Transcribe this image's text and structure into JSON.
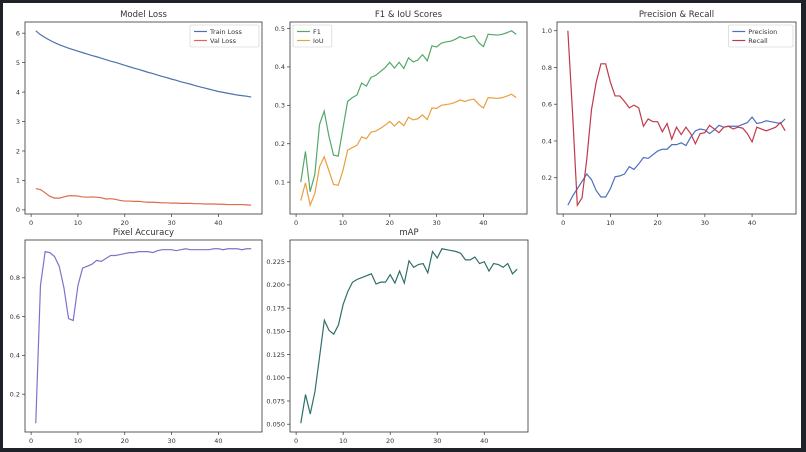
{
  "chart_data": [
    {
      "type": "line",
      "title": "Model Loss",
      "x": [
        1,
        2,
        3,
        4,
        5,
        6,
        7,
        8,
        9,
        10,
        11,
        12,
        13,
        14,
        15,
        16,
        17,
        18,
        19,
        20,
        21,
        22,
        23,
        24,
        25,
        26,
        27,
        28,
        29,
        30,
        31,
        32,
        33,
        34,
        35,
        36,
        37,
        38,
        39,
        40,
        41,
        42,
        43,
        44,
        45,
        46,
        47
      ],
      "xlim": [
        -1.3,
        49.3
      ],
      "xticks": [
        0,
        10,
        20,
        30,
        40
      ],
      "ylim": [
        -0.14,
        6.38
      ],
      "yticks": [
        0,
        1,
        2,
        3,
        4,
        5,
        6
      ],
      "legend": "top-right",
      "series": [
        {
          "name": "Train Loss",
          "color": "#4c72b0",
          "values": [
            6.08,
            5.95,
            5.85,
            5.76,
            5.68,
            5.61,
            5.55,
            5.49,
            5.44,
            5.39,
            5.34,
            5.29,
            5.24,
            5.2,
            5.15,
            5.1,
            5.05,
            5.01,
            4.96,
            4.91,
            4.86,
            4.81,
            4.77,
            4.72,
            4.67,
            4.63,
            4.58,
            4.53,
            4.49,
            4.44,
            4.4,
            4.35,
            4.31,
            4.27,
            4.22,
            4.18,
            4.14,
            4.1,
            4.06,
            4.02,
            3.99,
            3.96,
            3.93,
            3.9,
            3.88,
            3.86,
            3.83
          ]
        },
        {
          "name": "Val Loss",
          "color": "#dd6b4a",
          "values": [
            0.72,
            0.69,
            0.58,
            0.46,
            0.4,
            0.4,
            0.44,
            0.48,
            0.48,
            0.47,
            0.44,
            0.43,
            0.44,
            0.43,
            0.41,
            0.37,
            0.38,
            0.36,
            0.32,
            0.3,
            0.3,
            0.29,
            0.29,
            0.27,
            0.26,
            0.26,
            0.25,
            0.24,
            0.24,
            0.23,
            0.23,
            0.22,
            0.22,
            0.22,
            0.21,
            0.21,
            0.2,
            0.2,
            0.2,
            0.19,
            0.19,
            0.18,
            0.18,
            0.18,
            0.18,
            0.17,
            0.16
          ]
        }
      ]
    },
    {
      "type": "line",
      "title": "F1 & IoU Scores",
      "x": [
        1,
        2,
        3,
        4,
        5,
        6,
        7,
        8,
        9,
        10,
        11,
        12,
        13,
        14,
        15,
        16,
        17,
        18,
        19,
        20,
        21,
        22,
        23,
        24,
        25,
        26,
        27,
        28,
        29,
        30,
        31,
        32,
        33,
        34,
        35,
        36,
        37,
        38,
        39,
        40,
        41,
        42,
        43,
        44,
        45,
        46,
        47
      ],
      "xlim": [
        -1.3,
        49.3
      ],
      "xticks": [
        0,
        10,
        20,
        30,
        40
      ],
      "ylim": [
        0.017,
        0.517
      ],
      "yticks": [
        0.1,
        0.2,
        0.3,
        0.4,
        0.5
      ],
      "legend": "top-left",
      "series": [
        {
          "name": "F1",
          "color": "#55a868",
          "values": [
            0.1,
            0.18,
            0.075,
            0.12,
            0.25,
            0.285,
            0.22,
            0.17,
            0.168,
            0.24,
            0.31,
            0.32,
            0.327,
            0.358,
            0.35,
            0.373,
            0.378,
            0.388,
            0.398,
            0.412,
            0.397,
            0.412,
            0.396,
            0.424,
            0.413,
            0.418,
            0.432,
            0.416,
            0.455,
            0.452,
            0.462,
            0.465,
            0.467,
            0.472,
            0.479,
            0.474,
            0.478,
            0.481,
            0.463,
            0.453,
            0.485,
            0.484,
            0.483,
            0.485,
            0.489,
            0.494,
            0.485
          ]
        },
        {
          "name": "IoU",
          "color": "#e8a040",
          "values": [
            0.052,
            0.098,
            0.04,
            0.07,
            0.14,
            0.166,
            0.13,
            0.094,
            0.092,
            0.13,
            0.183,
            0.19,
            0.196,
            0.218,
            0.213,
            0.23,
            0.233,
            0.24,
            0.248,
            0.258,
            0.246,
            0.258,
            0.247,
            0.269,
            0.262,
            0.265,
            0.275,
            0.263,
            0.293,
            0.292,
            0.3,
            0.302,
            0.304,
            0.308,
            0.314,
            0.31,
            0.314,
            0.316,
            0.302,
            0.293,
            0.32,
            0.319,
            0.318,
            0.32,
            0.324,
            0.329,
            0.32
          ]
        }
      ]
    },
    {
      "type": "line",
      "title": "Precision & Recall",
      "x": [
        1,
        2,
        3,
        4,
        5,
        6,
        7,
        8,
        9,
        10,
        11,
        12,
        13,
        14,
        15,
        16,
        17,
        18,
        19,
        20,
        21,
        22,
        23,
        24,
        25,
        26,
        27,
        28,
        29,
        30,
        31,
        32,
        33,
        34,
        35,
        36,
        37,
        38,
        39,
        40,
        41,
        42,
        43,
        44,
        45,
        46,
        47
      ],
      "xlim": [
        -1.3,
        49.3
      ],
      "xticks": [
        0,
        10,
        20,
        30,
        40
      ],
      "ylim": [
        0.0025,
        1.0475
      ],
      "yticks": [
        0.2,
        0.4,
        0.6,
        0.8,
        1.0
      ],
      "legend": "top-right",
      "series": [
        {
          "name": "Precision",
          "color": "#4c6fc0",
          "values": [
            0.05,
            0.1,
            0.14,
            0.18,
            0.22,
            0.19,
            0.13,
            0.095,
            0.095,
            0.14,
            0.205,
            0.21,
            0.22,
            0.26,
            0.245,
            0.275,
            0.31,
            0.305,
            0.325,
            0.345,
            0.355,
            0.355,
            0.38,
            0.38,
            0.39,
            0.375,
            0.42,
            0.455,
            0.465,
            0.46,
            0.44,
            0.46,
            0.485,
            0.475,
            0.48,
            0.48,
            0.48,
            0.49,
            0.5,
            0.53,
            0.495,
            0.5,
            0.51,
            0.505,
            0.5,
            0.495,
            0.52
          ]
        },
        {
          "name": "Recall",
          "color": "#c0394b",
          "values": [
            1.0,
            0.55,
            0.05,
            0.09,
            0.3,
            0.57,
            0.72,
            0.82,
            0.82,
            0.72,
            0.645,
            0.645,
            0.615,
            0.58,
            0.595,
            0.58,
            0.48,
            0.52,
            0.505,
            0.505,
            0.45,
            0.495,
            0.41,
            0.475,
            0.435,
            0.475,
            0.44,
            0.385,
            0.44,
            0.445,
            0.485,
            0.465,
            0.445,
            0.475,
            0.48,
            0.465,
            0.475,
            0.47,
            0.44,
            0.395,
            0.475,
            0.465,
            0.455,
            0.465,
            0.475,
            0.5,
            0.455
          ]
        }
      ]
    },
    {
      "type": "line",
      "title": "Pixel Accuracy",
      "x": [
        1,
        2,
        3,
        4,
        5,
        6,
        7,
        8,
        9,
        10,
        11,
        12,
        13,
        14,
        15,
        16,
        17,
        18,
        19,
        20,
        21,
        22,
        23,
        24,
        25,
        26,
        27,
        28,
        29,
        30,
        31,
        32,
        33,
        34,
        35,
        36,
        37,
        38,
        39,
        40,
        41,
        42,
        43,
        44,
        45,
        46,
        47
      ],
      "xlim": [
        -1.3,
        49.3
      ],
      "xticks": [
        0,
        10,
        20,
        30,
        40
      ],
      "ylim": [
        0.005,
        0.995
      ],
      "yticks": [
        0.2,
        0.4,
        0.6,
        0.8
      ],
      "series": [
        {
          "color": "#8172c8",
          "values": [
            0.05,
            0.76,
            0.935,
            0.93,
            0.91,
            0.86,
            0.75,
            0.59,
            0.58,
            0.76,
            0.85,
            0.86,
            0.87,
            0.89,
            0.885,
            0.9,
            0.915,
            0.915,
            0.92,
            0.925,
            0.93,
            0.93,
            0.935,
            0.935,
            0.935,
            0.93,
            0.94,
            0.945,
            0.945,
            0.945,
            0.94,
            0.945,
            0.95,
            0.945,
            0.945,
            0.945,
            0.945,
            0.945,
            0.95,
            0.95,
            0.945,
            0.95,
            0.95,
            0.95,
            0.945,
            0.95,
            0.95
          ]
        }
      ]
    },
    {
      "type": "line",
      "title": "mAP",
      "x": [
        1,
        2,
        3,
        4,
        5,
        6,
        7,
        8,
        9,
        10,
        11,
        12,
        13,
        14,
        15,
        16,
        17,
        18,
        19,
        20,
        21,
        22,
        23,
        24,
        25,
        26,
        27,
        28,
        29,
        30,
        31,
        32,
        33,
        34,
        35,
        36,
        37,
        38,
        39,
        40,
        41,
        42,
        43,
        44,
        45,
        46,
        47
      ],
      "xlim": [
        -1.3,
        49.3
      ],
      "xticks": [
        0,
        10,
        20,
        30,
        40
      ],
      "ylim": [
        0.0416,
        0.2484
      ],
      "yticks": [
        0.05,
        0.075,
        0.1,
        0.125,
        0.15,
        0.175,
        0.2,
        0.225
      ],
      "ytick_labels": [
        "0.050",
        "0.075",
        "0.100",
        "0.125",
        "0.150",
        "0.175",
        "0.200",
        "0.225"
      ],
      "series": [
        {
          "color": "#2f6f6a",
          "values": [
            0.051,
            0.082,
            0.061,
            0.085,
            0.123,
            0.162,
            0.151,
            0.147,
            0.157,
            0.179,
            0.193,
            0.203,
            0.206,
            0.208,
            0.21,
            0.212,
            0.201,
            0.203,
            0.203,
            0.211,
            0.202,
            0.215,
            0.202,
            0.226,
            0.219,
            0.222,
            0.223,
            0.213,
            0.236,
            0.229,
            0.239,
            0.238,
            0.237,
            0.236,
            0.234,
            0.227,
            0.227,
            0.23,
            0.223,
            0.225,
            0.215,
            0.223,
            0.222,
            0.219,
            0.223,
            0.212,
            0.217
          ]
        }
      ]
    }
  ]
}
